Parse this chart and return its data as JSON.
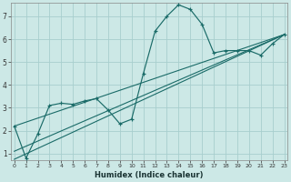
{
  "bg_color": "#cce8e6",
  "grid_color": "#a8cece",
  "line_color": "#1a6b68",
  "xlabel": "Humidex (Indice chaleur)",
  "ylim": [
    0.7,
    7.6
  ],
  "xlim": [
    -0.3,
    23.3
  ],
  "yticks": [
    1,
    2,
    3,
    4,
    5,
    6,
    7
  ],
  "xticks": [
    0,
    1,
    2,
    3,
    4,
    5,
    6,
    7,
    8,
    9,
    10,
    11,
    12,
    13,
    14,
    15,
    16,
    17,
    18,
    19,
    20,
    21,
    22,
    23
  ],
  "main_x": [
    0,
    1,
    2,
    3,
    4,
    5,
    6,
    7,
    8,
    9,
    10,
    11,
    12,
    13,
    14,
    15,
    16,
    17,
    18,
    19,
    20,
    21,
    22,
    23
  ],
  "main_y": [
    2.2,
    0.8,
    1.85,
    3.1,
    3.2,
    3.15,
    3.3,
    3.4,
    2.9,
    2.3,
    2.5,
    4.5,
    6.35,
    7.0,
    7.5,
    7.3,
    6.65,
    5.4,
    5.5,
    5.5,
    5.5,
    5.3,
    5.8,
    6.2
  ],
  "trend1_x": [
    0,
    23
  ],
  "trend1_y": [
    2.2,
    6.2
  ],
  "trend2_x": [
    0,
    23
  ],
  "trend2_y": [
    1.1,
    6.2
  ],
  "trend3_x": [
    0,
    23
  ],
  "trend3_y": [
    0.75,
    6.2
  ],
  "ytick_fontsize": 5.5,
  "xtick_fontsize": 4.5,
  "xlabel_fontsize": 6.0
}
